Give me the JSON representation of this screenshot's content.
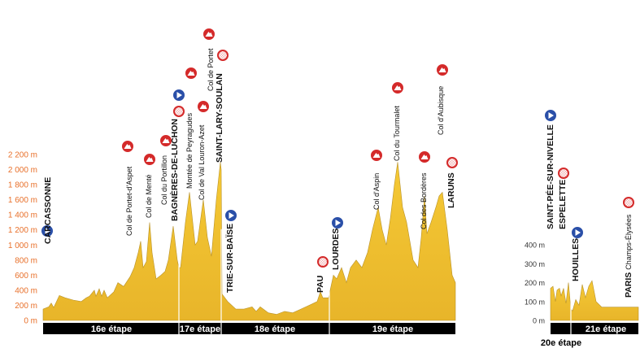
{
  "chart_data": [
    {
      "type": "area",
      "y_unit": "m",
      "ylim": [
        0,
        2200
      ],
      "y_ticks": [
        "0 m",
        "200 m",
        "400 m",
        "600 m",
        "800 m",
        "1 000 m",
        "1 200 m",
        "1 400 m",
        "1 600 m",
        "1 800 m",
        "2 000 m",
        "2 200 m"
      ],
      "stages": [
        "16e étape",
        "17e étape",
        "18e étape",
        "19e étape"
      ],
      "fill_color": "#f2c232",
      "profile": [
        [
          0,
          150
        ],
        [
          7,
          180
        ],
        [
          10,
          230
        ],
        [
          13,
          170
        ],
        [
          20,
          330
        ],
        [
          27,
          300
        ],
        [
          37,
          270
        ],
        [
          47,
          250
        ],
        [
          53,
          300
        ],
        [
          57,
          320
        ],
        [
          63,
          400
        ],
        [
          65,
          320
        ],
        [
          69,
          420
        ],
        [
          72,
          320
        ],
        [
          75,
          400
        ],
        [
          79,
          300
        ],
        [
          87,
          380
        ],
        [
          92,
          500
        ],
        [
          99,
          450
        ],
        [
          107,
          580
        ],
        [
          112,
          700
        ],
        [
          117,
          900
        ],
        [
          120,
          1050
        ],
        [
          123,
          700
        ],
        [
          127,
          780
        ],
        [
          131,
          1300
        ],
        [
          134,
          900
        ],
        [
          139,
          550
        ],
        [
          145,
          600
        ],
        [
          150,
          650
        ],
        [
          154,
          800
        ],
        [
          160,
          1250
        ],
        [
          165,
          800
        ],
        [
          167,
          700
        ],
        [
          169,
          700
        ],
        [
          175,
          1300
        ],
        [
          180,
          1700
        ],
        [
          187,
          1000
        ],
        [
          190,
          1050
        ],
        [
          197,
          1600
        ],
        [
          202,
          1100
        ],
        [
          207,
          850
        ],
        [
          213,
          1600
        ],
        [
          218,
          2100
        ],
        [
          219,
          2000
        ],
        [
          220,
          350
        ],
        [
          227,
          250
        ],
        [
          237,
          150
        ],
        [
          247,
          150
        ],
        [
          257,
          180
        ],
        [
          262,
          120
        ],
        [
          267,
          180
        ],
        [
          277,
          100
        ],
        [
          287,
          80
        ],
        [
          297,
          120
        ],
        [
          307,
          100
        ],
        [
          317,
          150
        ],
        [
          327,
          200
        ],
        [
          337,
          250
        ],
        [
          341,
          380
        ],
        [
          344,
          300
        ],
        [
          351,
          300
        ],
        [
          353,
          400
        ],
        [
          357,
          600
        ],
        [
          361,
          550
        ],
        [
          367,
          700
        ],
        [
          373,
          500
        ],
        [
          378,
          700
        ],
        [
          385,
          800
        ],
        [
          392,
          700
        ],
        [
          399,
          900
        ],
        [
          405,
          1200
        ],
        [
          412,
          1500
        ],
        [
          417,
          1200
        ],
        [
          422,
          1000
        ],
        [
          427,
          1350
        ],
        [
          432,
          1800
        ],
        [
          436,
          2100
        ],
        [
          442,
          1500
        ],
        [
          447,
          1300
        ],
        [
          455,
          800
        ],
        [
          461,
          700
        ],
        [
          465,
          1100
        ],
        [
          469,
          1650
        ],
        [
          472,
          1150
        ],
        [
          477,
          1300
        ],
        [
          483,
          1500
        ],
        [
          487,
          1650
        ],
        [
          491,
          1700
        ],
        [
          497,
          1200
        ],
        [
          503,
          600
        ],
        [
          507,
          500
        ]
      ],
      "stage_breaks": [
        167,
        219,
        352
      ],
      "markers": [
        {
          "type": "start",
          "label": "CARCASSONNE",
          "kind": "town"
        },
        {
          "type": "climb",
          "label": "Col de Portet-d'Aspet",
          "kind": "climb"
        },
        {
          "type": "climb",
          "label": "Col de Menté",
          "kind": "climb"
        },
        {
          "type": "climb",
          "label": "Col du Portillon",
          "kind": "climb"
        },
        {
          "type": "finish",
          "label": "BAGNÈRES-DE-LUCHON",
          "kind": "town"
        },
        {
          "type": "start",
          "label": "",
          "kind": "town"
        },
        {
          "type": "climb",
          "label": "Montée de Peyragudes",
          "kind": "climb"
        },
        {
          "type": "climb",
          "label": "Col de Val Louron-Azet",
          "kind": "climb"
        },
        {
          "type": "climb",
          "label": "Col de Portet",
          "kind": "climb"
        },
        {
          "type": "finish",
          "label": "SAINT-LARY-SOULAN",
          "kind": "town"
        },
        {
          "type": "start",
          "label": "TRIE-SUR-BAÏSE",
          "kind": "town"
        },
        {
          "type": "finish",
          "label": "PAU",
          "kind": "town"
        },
        {
          "type": "start",
          "label": "LOURDES",
          "kind": "town"
        },
        {
          "type": "climb",
          "label": "Col d'Aspin",
          "kind": "climb"
        },
        {
          "type": "climb",
          "label": "Col du Tourmalet",
          "kind": "climb"
        },
        {
          "type": "climb",
          "label": "Col des Bordères",
          "kind": "climb"
        },
        {
          "type": "climb",
          "label": "Col d'Aubisque",
          "kind": "climb"
        },
        {
          "type": "finish",
          "label": "LARUNS",
          "kind": "town"
        }
      ]
    },
    {
      "type": "area",
      "y_unit": "m",
      "ylim": [
        0,
        400
      ],
      "y_ticks": [
        "0 m",
        "100 m",
        "200 m",
        "300 m",
        "400 m"
      ],
      "stages": [
        "20e étape",
        "21e étape"
      ],
      "fill_color": "#f2c232",
      "profile": [
        [
          0,
          170
        ],
        [
          3,
          180
        ],
        [
          6,
          100
        ],
        [
          8,
          160
        ],
        [
          11,
          170
        ],
        [
          13,
          130
        ],
        [
          16,
          170
        ],
        [
          19,
          90
        ],
        [
          22,
          200
        ],
        [
          25,
          60
        ],
        [
          27,
          50
        ],
        [
          31,
          110
        ],
        [
          35,
          80
        ],
        [
          39,
          190
        ],
        [
          43,
          120
        ],
        [
          47,
          180
        ],
        [
          51,
          210
        ],
        [
          56,
          100
        ],
        [
          63,
          70
        ],
        [
          108,
          70
        ]
      ],
      "stage_breaks": [
        25
      ],
      "markers": [
        {
          "type": "start",
          "label": "SAINT-PÉE-SUR-NIVELLE",
          "kind": "town"
        },
        {
          "type": "finish",
          "label": "ESPELETTE",
          "kind": "town"
        },
        {
          "type": "start",
          "label": "HOUILLES",
          "kind": "town"
        },
        {
          "type": "finish",
          "label": "PARIS",
          "sub": "Champs-Élysées",
          "kind": "town"
        }
      ]
    }
  ],
  "colors": {
    "climb": "#d42a2a",
    "finish": "#d42a2a",
    "start": "#2a4fa8",
    "axis_text": "#e8702a",
    "band": "#000000"
  }
}
